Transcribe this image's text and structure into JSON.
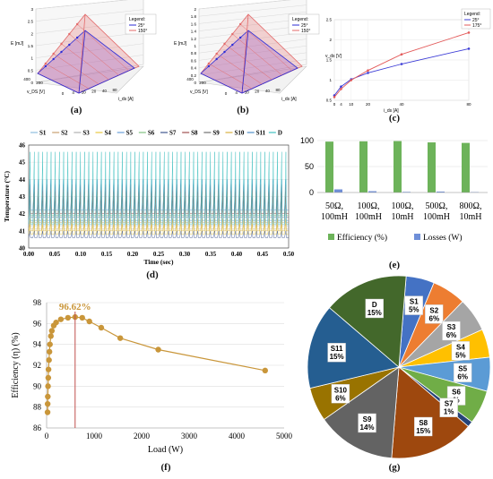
{
  "panel_labels": [
    "(a)",
    "(b)",
    "(c)",
    "(d)",
    "(e)",
    "(f)",
    "(g)"
  ],
  "chart_data": [
    {
      "id": "a",
      "type": "area",
      "title": "",
      "zlabel": "E [mJ]",
      "xlabel": "i_ds [A]",
      "ylabel": "v_DS [V]",
      "zticks": [
        "0",
        "0.5",
        "1",
        "1.5",
        "2",
        "2.5",
        "3"
      ],
      "xticks": [
        "0",
        "4",
        "10",
        "20",
        "40",
        "80"
      ],
      "yticks": [
        "400",
        "200"
      ],
      "legend_title": "Legend:",
      "legend_position": "top-right",
      "series": [
        {
          "name": "25°",
          "color": "#2b2bd6"
        },
        {
          "name": "150°",
          "color": "#e36a6a"
        }
      ]
    },
    {
      "id": "b",
      "type": "area",
      "title": "",
      "zlabel": "E [mJ]",
      "xlabel": "i_ds [A]",
      "ylabel": "v_DS [V]",
      "zticks": [
        "0",
        "0.2",
        "0.4",
        "0.6",
        "0.8",
        "1",
        "1.2",
        "1.4",
        "1.6",
        "1.8",
        "2"
      ],
      "xticks": [
        "0",
        "4",
        "10",
        "20",
        "40",
        "80"
      ],
      "yticks": [
        "400",
        "200"
      ],
      "legend_title": "Legend:",
      "legend_position": "top-right",
      "series": [
        {
          "name": "25°",
          "color": "#2b2bd6"
        },
        {
          "name": "150°",
          "color": "#e36a6a"
        }
      ]
    },
    {
      "id": "c",
      "type": "line",
      "xlabel": "i_ds [A]",
      "ylabel": "v_ds [V]",
      "x": [
        0,
        4,
        10,
        20,
        40,
        80
      ],
      "xticks": [
        "0",
        "4",
        "10",
        "20",
        "40",
        "80"
      ],
      "ylim": [
        0.5,
        2.5
      ],
      "yticks": [
        "0.5",
        "1",
        "1.5",
        "2",
        "2.5"
      ],
      "legend_title": "Legend:",
      "legend_position": "top-right",
      "series": [
        {
          "name": "25°",
          "color": "#3b3bd6",
          "values": [
            0.62,
            0.84,
            1.02,
            1.18,
            1.4,
            1.78
          ]
        },
        {
          "name": "175°",
          "color": "#e35a5a",
          "values": [
            0.58,
            0.78,
            1.0,
            1.24,
            1.64,
            2.18
          ]
        }
      ]
    },
    {
      "id": "d",
      "type": "line",
      "xlabel": "Time (sec)",
      "ylabel": "Temperature (°C)",
      "xlim": [
        0,
        0.5
      ],
      "ylim": [
        40,
        46
      ],
      "xticks": [
        "0.00",
        "0.05",
        "0.10",
        "0.15",
        "0.20",
        "0.25",
        "0.30",
        "0.35",
        "0.40",
        "0.45",
        "0.50"
      ],
      "yticks": [
        "40",
        "41",
        "42",
        "43",
        "44",
        "45",
        "46"
      ],
      "legend_position": "top",
      "series": [
        {
          "name": "S1",
          "color": "#8fbfe0",
          "base": 41.3,
          "peak": 42.2
        },
        {
          "name": "S2",
          "color": "#c8a070",
          "base": 41.5,
          "peak": 42.5
        },
        {
          "name": "S3",
          "color": "#b0b0b0",
          "base": 41.1,
          "peak": 41.8
        },
        {
          "name": "S4",
          "color": "#e8c840",
          "base": 40.8,
          "peak": 41.4
        },
        {
          "name": "S5",
          "color": "#6a9fd8",
          "base": 41.6,
          "peak": 42.8
        },
        {
          "name": "S6",
          "color": "#80c080",
          "base": 41.9,
          "peak": 43.3
        },
        {
          "name": "S7",
          "color": "#405890",
          "base": 40.6,
          "peak": 41.0
        },
        {
          "name": "S8",
          "color": "#a05050",
          "base": 42.0,
          "peak": 43.7
        },
        {
          "name": "S9",
          "color": "#707070",
          "base": 41.8,
          "peak": 43.0
        },
        {
          "name": "S10",
          "color": "#d8b040",
          "base": 41.0,
          "peak": 41.7
        },
        {
          "name": "S11",
          "color": "#5090c8",
          "base": 42.2,
          "peak": 44.0
        },
        {
          "name": "D",
          "color": "#40c0c0",
          "base": 41.4,
          "peak": 45.6
        }
      ]
    },
    {
      "id": "e",
      "type": "bar",
      "categories": [
        "50Ω,\n100mH",
        "100Ω,\n100mH",
        "100Ω,\n10mH",
        "500Ω,\n100mH",
        "800Ω,\n10mH"
      ],
      "ylim": [
        0,
        100
      ],
      "yticks": [
        "0",
        "50",
        "100"
      ],
      "legend_position": "bottom",
      "series": [
        {
          "name": "Efficiency (%)",
          "color": "#6db35a",
          "values": [
            98.0,
            98.5,
            99.0,
            96.5,
            95.5
          ]
        },
        {
          "name": "Losses (W)",
          "color": "#6f8fd8",
          "values": [
            6.0,
            2.5,
            1.2,
            1.8,
            0.8
          ]
        }
      ]
    },
    {
      "id": "f",
      "type": "scatter",
      "xlabel": "Load (W)",
      "ylabel": "Efficiency (η) (%)",
      "xlim": [
        0,
        5000
      ],
      "ylim": [
        86,
        98
      ],
      "xticks": [
        "0",
        "1000",
        "2000",
        "3000",
        "4000",
        "5000"
      ],
      "yticks": [
        "86",
        "88",
        "90",
        "92",
        "94",
        "96",
        "98"
      ],
      "annotation": "96.62%",
      "peak_x": 600,
      "series": [
        {
          "name": "",
          "color": "#c9963a",
          "x": [
            20,
            22,
            25,
            30,
            35,
            40,
            50,
            60,
            70,
            90,
            110,
            150,
            200,
            300,
            450,
            600,
            750,
            900,
            1150,
            1550,
            2350,
            4600
          ],
          "y": [
            87.5,
            88.3,
            89.0,
            90.0,
            90.8,
            91.6,
            92.5,
            93.3,
            94.0,
            94.8,
            95.3,
            95.8,
            96.1,
            96.4,
            96.55,
            96.62,
            96.55,
            96.2,
            95.6,
            94.6,
            93.5,
            91.5
          ]
        }
      ]
    },
    {
      "id": "g",
      "type": "pie",
      "slices": [
        {
          "label": "S1",
          "value": 5,
          "text": "5%",
          "color": "#4472c4"
        },
        {
          "label": "S2",
          "value": 6,
          "text": "6%",
          "color": "#ed7d31"
        },
        {
          "label": "S3",
          "value": 6,
          "text": "6%",
          "color": "#a5a5a5"
        },
        {
          "label": "S4",
          "value": 5,
          "text": "5%",
          "color": "#ffc000"
        },
        {
          "label": "S5",
          "value": 6,
          "text": "6%",
          "color": "#5b9bd5"
        },
        {
          "label": "S6",
          "value": 6,
          "text": "%",
          "color": "#70ad47"
        },
        {
          "label": "S7",
          "value": 1,
          "text": "1%",
          "color": "#264478"
        },
        {
          "label": "S8",
          "value": 15,
          "text": "15%",
          "color": "#9e480e"
        },
        {
          "label": "S9",
          "value": 14,
          "text": "14%",
          "color": "#636363"
        },
        {
          "label": "S10",
          "value": 6,
          "text": "6%",
          "color": "#997300"
        },
        {
          "label": "S11",
          "value": 15,
          "text": "15%",
          "color": "#255e91"
        },
        {
          "label": "D",
          "value": 15,
          "text": "15%",
          "color": "#43682b"
        }
      ]
    }
  ]
}
